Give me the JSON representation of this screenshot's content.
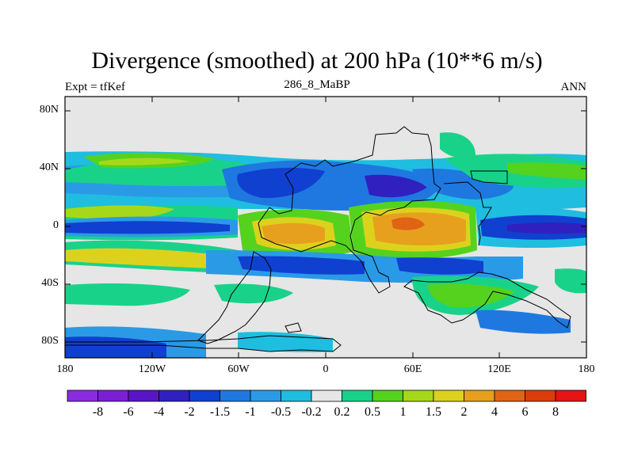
{
  "header": {
    "title": "Divergence (smoothed) at 200 hPa (10**6 m/s)",
    "left": "Expt = tfKef",
    "center": "286_8_MaBP",
    "right": "ANN"
  },
  "map": {
    "lat_ticks": [
      "80N",
      "40N",
      "0",
      "40S",
      "80S"
    ],
    "lon_ticks": [
      "180",
      "120W",
      "60W",
      "0",
      "60E",
      "120E",
      "180"
    ],
    "background_color": "#e6e6e6"
  },
  "colorbar": {
    "labels": [
      "-8",
      "-6",
      "-4",
      "-2",
      "-1.5",
      "-1",
      "-0.5",
      "-0.2",
      "0.2",
      "0.5",
      "1",
      "1.5",
      "2",
      "4",
      "6",
      "8"
    ],
    "colors": [
      "#8a2be2",
      "#7a1fd8",
      "#5a14c8",
      "#3020c0",
      "#1040d0",
      "#1e78e0",
      "#2a9ae6",
      "#1fbde0",
      "#e6e6e6",
      "#19d28a",
      "#55d21e",
      "#a6d81a",
      "#dcd21e",
      "#e6a01e",
      "#e06414",
      "#dc3c0a",
      "#e61414"
    ]
  }
}
